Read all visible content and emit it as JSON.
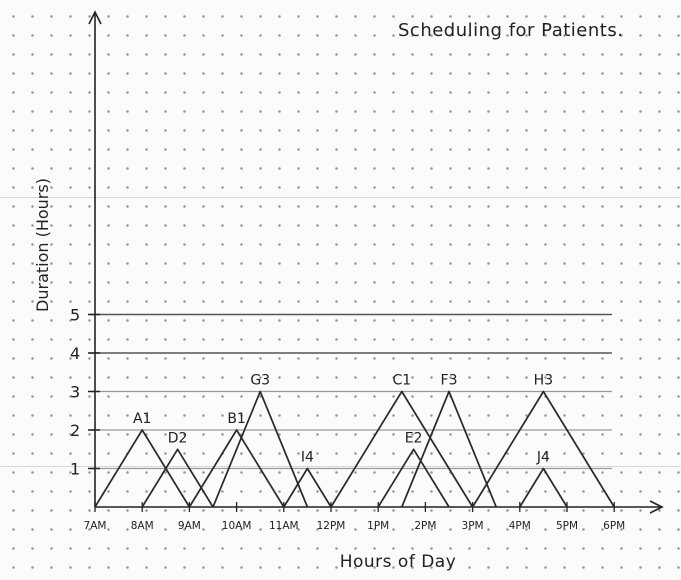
{
  "chart_data": {
    "type": "line",
    "title": "Scheduling for Patients.",
    "xlabel": "Hours of Day",
    "ylabel": "Duration (Hours)",
    "x_ticks": [
      "7AM",
      "8AM",
      "9AM",
      "10AM",
      "11AM",
      "12PM",
      "1PM",
      "2PM",
      "3PM",
      "4PM",
      "5PM",
      "6PM"
    ],
    "y_ticks": [
      "1",
      "2",
      "3",
      "4",
      "5"
    ],
    "ylim": [
      0,
      12
    ],
    "grid": false,
    "series": [
      {
        "name": "A1",
        "x": [
          7,
          8,
          9
        ],
        "y": [
          0,
          2,
          0
        ]
      },
      {
        "name": "D2",
        "x": [
          8,
          8.75,
          9.5
        ],
        "y": [
          0,
          1.5,
          0
        ]
      },
      {
        "name": "B1",
        "x": [
          9,
          10,
          11
        ],
        "y": [
          0,
          2,
          0
        ]
      },
      {
        "name": "G3",
        "x": [
          9.5,
          10.5,
          11.5
        ],
        "y": [
          0,
          3,
          0
        ]
      },
      {
        "name": "I4",
        "x": [
          11,
          11.5,
          12
        ],
        "y": [
          0,
          1,
          0
        ]
      },
      {
        "name": "C1",
        "x": [
          12,
          13.5,
          15
        ],
        "y": [
          0,
          3,
          0
        ]
      },
      {
        "name": "E2",
        "x": [
          13,
          13.75,
          14.5
        ],
        "y": [
          0,
          1.5,
          0
        ]
      },
      {
        "name": "F3",
        "x": [
          13.5,
          14.5,
          15.5
        ],
        "y": [
          0,
          3,
          0
        ]
      },
      {
        "name": "H3",
        "x": [
          15,
          16.5,
          18
        ],
        "y": [
          0,
          3,
          0
        ]
      },
      {
        "name": "J4",
        "x": [
          16,
          16.5,
          17
        ],
        "y": [
          0,
          1,
          0
        ]
      }
    ]
  }
}
